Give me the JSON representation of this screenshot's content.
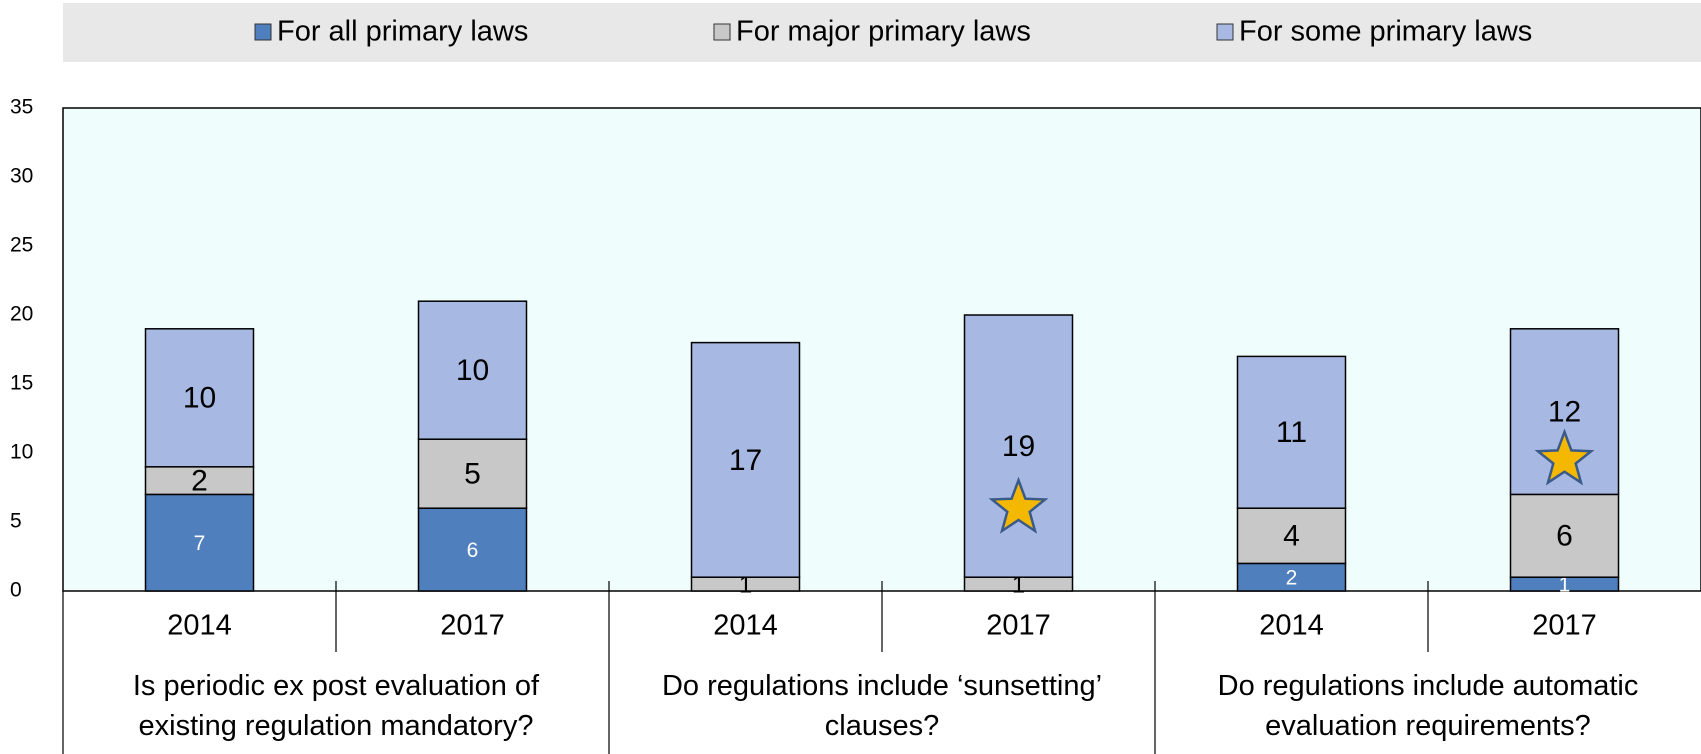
{
  "chart_data": {
    "type": "stacked-bar",
    "categories": [
      "2014",
      "2017",
      "2014",
      "2017",
      "2014",
      "2017"
    ],
    "groups": [
      "Is periodic ex post evaluation of existing regulation mandatory?",
      "Do regulations include ‘sunsetting’ clauses?",
      "Do regulations include automatic evaluation requirements?"
    ],
    "series": [
      {
        "name": "For all primary laws",
        "color": "#4f7fbd",
        "values": [
          7,
          6,
          null,
          null,
          2,
          1
        ]
      },
      {
        "name": "For major primary laws",
        "color": "#c8c8c8",
        "values": [
          2,
          5,
          1,
          1,
          4,
          6
        ]
      },
      {
        "name": "For some primary laws",
        "color": "#a7b9e3",
        "values": [
          10,
          10,
          17,
          19,
          11,
          12
        ]
      }
    ],
    "markers": [
      {
        "index": 3,
        "value": 6
      },
      {
        "index": 5,
        "value": 9.5
      }
    ],
    "marker_color": "#f5b800",
    "ylim": [
      0,
      35
    ],
    "yticks": [
      0,
      5,
      10,
      15,
      20,
      25,
      30,
      35
    ],
    "grid": false,
    "legend": "top"
  }
}
